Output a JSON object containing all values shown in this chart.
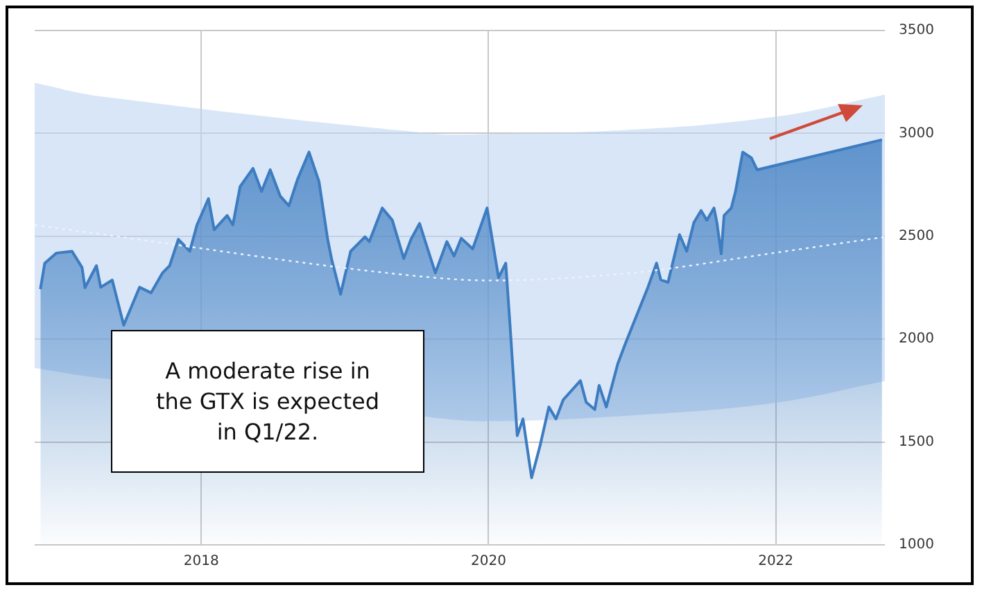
{
  "chart_data": {
    "type": "area",
    "annotations": [
      "A moderate rise in the GTX is expected in Q1/22."
    ],
    "xlim": [
      2016.84,
      2022.76
    ],
    "xticks": [
      2018,
      2020,
      2022
    ],
    "ylim": [
      1000,
      3500
    ],
    "yticks": [
      1000,
      1500,
      2000,
      2500,
      3000,
      3500
    ],
    "grid": true,
    "legend": false,
    "series": [
      {
        "type": "line",
        "color": "#eef3fa",
        "line_style": "dotted",
        "marker": "none",
        "x": [
          2016.84,
          2017.3,
          2019.6,
          2020,
          2021,
          2022,
          2022.76
        ],
        "values": [
          2555,
          2510,
          2300,
          2285,
          2322,
          2420,
          2497
        ],
        "lower": [
          1859,
          1810,
          1620,
          1601,
          1629,
          1691,
          1796
        ],
        "upper": [
          3246,
          3180,
          3000,
          2997,
          3018,
          3081,
          3188
        ]
      },
      {
        "color": "#3d7cc0",
        "marker": "none",
        "x": [
          2016.88,
          2016.91,
          2016.99,
          2017.1,
          2017.17,
          2017.19,
          2017.27,
          2017.3,
          2017.38,
          2017.46,
          2017.57,
          2017.65,
          2017.73,
          2017.78,
          2017.84,
          2017.92,
          2017.97,
          2018.05,
          2018.09,
          2018.18,
          2018.22,
          2018.27,
          2018.36,
          2018.42,
          2018.48,
          2018.55,
          2018.61,
          2018.67,
          2018.75,
          2018.82,
          2018.88,
          2018.91,
          2018.97,
          2019.04,
          2019.14,
          2019.17,
          2019.26,
          2019.33,
          2019.41,
          2019.46,
          2019.52,
          2019.56,
          2019.63,
          2019.71,
          2019.76,
          2019.81,
          2019.89,
          2019.99,
          2020.07,
          2020.12,
          2020.15,
          2020.2,
          2020.24,
          2020.3,
          2020.36,
          2020.42,
          2020.47,
          2020.52,
          2020.64,
          2020.68,
          2020.74,
          2020.77,
          2020.82,
          2020.9,
          2020.95,
          2021.01,
          2021.11,
          2021.17,
          2021.2,
          2021.25,
          2021.33,
          2021.38,
          2021.43,
          2021.48,
          2021.52,
          2021.57,
          2021.59,
          2021.62,
          2021.64,
          2021.69,
          2021.72,
          2021.77,
          2021.83,
          2021.87,
          2022.74
        ],
        "values": [
          2243,
          2369,
          2418,
          2427,
          2348,
          2250,
          2357,
          2252,
          2287,
          2068,
          2252,
          2225,
          2322,
          2357,
          2485,
          2427,
          2555,
          2683,
          2532,
          2601,
          2555,
          2741,
          2830,
          2718,
          2823,
          2695,
          2648,
          2776,
          2909,
          2765,
          2485,
          2381,
          2218,
          2427,
          2497,
          2474,
          2637,
          2578,
          2392,
          2485,
          2562,
          2474,
          2322,
          2474,
          2404,
          2490,
          2439,
          2637,
          2299,
          2369,
          2066,
          1531,
          1612,
          1326,
          1485,
          1670,
          1612,
          1705,
          1798,
          1693,
          1658,
          1775,
          1670,
          1880,
          1973,
          2078,
          2252,
          2369,
          2288,
          2276,
          2508,
          2427,
          2567,
          2625,
          2578,
          2637,
          2567,
          2415,
          2601,
          2637,
          2718,
          2909,
          2881,
          2823,
          2969
        ]
      }
    ]
  }
}
